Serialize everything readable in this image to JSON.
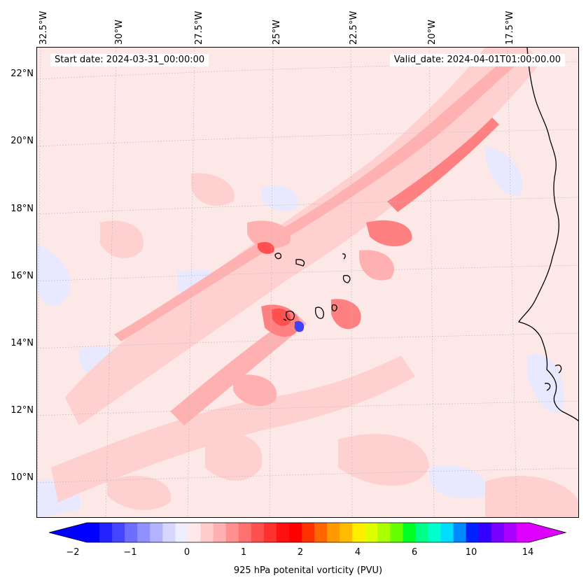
{
  "map": {
    "start_date": "Start date: 2024-03-31_00:00:00",
    "valid_date": "Valid_date: 2024-04-01T01:00:00.00",
    "lon_labels": [
      "32.5°W",
      "30°W",
      "27.5°W",
      "25°W",
      "22.5°W",
      "20°W",
      "17.5°W"
    ],
    "lat_labels": [
      "22°N",
      "20°N",
      "18°N",
      "16°N",
      "14°N",
      "12°N",
      "10°N"
    ],
    "background_color": "#fde8e8"
  },
  "colorbar": {
    "label": "925 hPa potenital vorticity (PVU)",
    "tick_labels": [
      "−2",
      "−1",
      "0",
      "1",
      "2",
      "4",
      "6",
      "10",
      "14"
    ],
    "colors": [
      "#0000ff",
      "#2222ff",
      "#4545ff",
      "#6e6eff",
      "#9090ff",
      "#b3b3ff",
      "#d6d6ff",
      "#eeeeff",
      "#ffe8e8",
      "#ffcccc",
      "#ffb0b0",
      "#ff9090",
      "#ff7070",
      "#ff5050",
      "#ff3030",
      "#ff1010",
      "#ff0000",
      "#ff3300",
      "#ff6600",
      "#ff9900",
      "#ffbb00",
      "#ffee00",
      "#ddff00",
      "#aaff00",
      "#66ff00",
      "#00ff22",
      "#00ff88",
      "#00ffcc",
      "#00ddff",
      "#0088ff",
      "#0022ff",
      "#3300ff",
      "#7700ff",
      "#aa00ff",
      "#dd00ff"
    ]
  }
}
